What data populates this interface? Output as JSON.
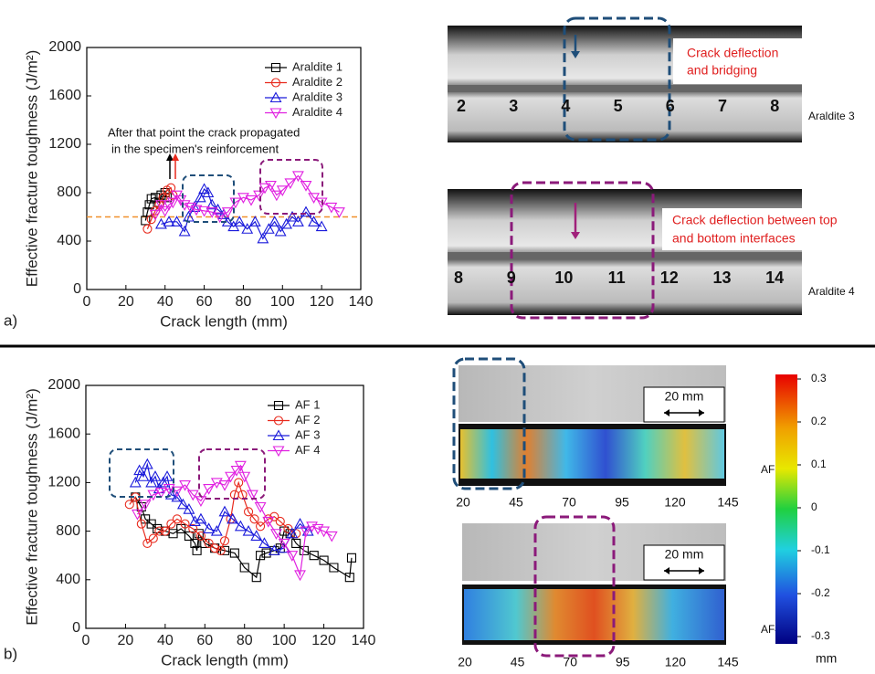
{
  "chart_data": [
    {
      "type": "line",
      "panel": "a)",
      "xlabel": "Crack length (mm)",
      "ylabel": "Effective fracture toughness (J/m²)",
      "xlim": [
        0,
        140
      ],
      "ylim": [
        0,
        2000
      ],
      "xticks": [
        0,
        20,
        40,
        60,
        80,
        100,
        120,
        140
      ],
      "yticks": [
        0,
        400,
        800,
        1200,
        1600,
        2000
      ],
      "grid": false,
      "legend": "upper right",
      "hline": 600,
      "hline_color": "#f0902a",
      "annotation": [
        "After that point the crack propagated",
        "in the specimen's reinforcement"
      ],
      "series": [
        {
          "name": "Araldite 1",
          "color": "#000000",
          "marker": "square",
          "x": [
            30,
            31,
            32,
            33,
            35,
            37,
            38,
            40,
            41
          ],
          "values": [
            570,
            640,
            700,
            750,
            760,
            720,
            780,
            800,
            760
          ]
        },
        {
          "name": "Araldite 2",
          "color": "#e8291c",
          "marker": "circle",
          "x": [
            31,
            33,
            35,
            37,
            39,
            41,
            43,
            44
          ],
          "values": [
            500,
            580,
            650,
            700,
            760,
            820,
            840,
            780
          ]
        },
        {
          "name": "Araldite 3",
          "color": "#1a1adb",
          "marker": "triangle-up",
          "x": [
            38,
            42,
            46,
            50,
            52,
            55,
            58,
            60,
            62,
            64,
            67,
            70,
            72,
            75,
            78,
            82,
            86,
            90,
            93,
            96,
            99,
            102,
            105,
            108,
            112,
            116,
            120
          ],
          "values": [
            540,
            560,
            560,
            480,
            600,
            680,
            760,
            830,
            800,
            700,
            660,
            620,
            560,
            520,
            560,
            500,
            560,
            420,
            500,
            560,
            480,
            540,
            600,
            560,
            640,
            560,
            520
          ]
        },
        {
          "name": "Araldite 4",
          "color": "#e020e0",
          "marker": "triangle-down",
          "x": [
            35,
            38,
            40,
            42,
            44,
            46,
            48,
            50,
            53,
            56,
            60,
            64,
            68,
            72,
            76,
            80,
            84,
            88,
            91,
            94,
            97,
            100,
            104,
            108,
            112,
            116,
            120,
            125,
            129
          ],
          "values": [
            620,
            700,
            650,
            700,
            720,
            780,
            740,
            700,
            680,
            660,
            650,
            640,
            600,
            640,
            720,
            760,
            740,
            780,
            840,
            860,
            780,
            820,
            880,
            940,
            860,
            760,
            720,
            680,
            640
          ]
        }
      ]
    },
    {
      "type": "line",
      "panel": "b)",
      "xlabel": "Crack length (mm)",
      "ylabel": "Effective fracture toughness (J/m²)",
      "xlim": [
        0,
        140
      ],
      "ylim": [
        0,
        2000
      ],
      "xticks": [
        0,
        20,
        40,
        60,
        80,
        100,
        120,
        140
      ],
      "yticks": [
        0,
        400,
        800,
        1200,
        1600,
        2000
      ],
      "grid": false,
      "legend": "upper right",
      "series": [
        {
          "name": "AF 1",
          "color": "#000000",
          "marker": "square",
          "x": [
            25,
            28,
            30,
            33,
            36,
            40,
            44,
            48,
            52,
            55,
            56,
            57,
            60,
            65,
            70,
            75,
            80,
            86,
            88,
            91,
            95,
            98,
            100,
            103,
            106,
            110,
            115,
            120,
            125,
            133,
            134
          ],
          "values": [
            1080,
            1000,
            900,
            860,
            820,
            800,
            780,
            820,
            760,
            700,
            640,
            780,
            700,
            660,
            640,
            620,
            500,
            420,
            600,
            620,
            640,
            660,
            800,
            780,
            700,
            640,
            600,
            560,
            500,
            420,
            580
          ]
        },
        {
          "name": "AF 2",
          "color": "#e8291c",
          "marker": "circle",
          "x": [
            22,
            25,
            28,
            31,
            34,
            37,
            40,
            43,
            46,
            50,
            54,
            58,
            62,
            65,
            68,
            70,
            73,
            75,
            77,
            79,
            82,
            85,
            88,
            92,
            95,
            98,
            102,
            106
          ],
          "values": [
            1020,
            1080,
            860,
            700,
            740,
            800,
            800,
            860,
            900,
            860,
            820,
            760,
            700,
            660,
            640,
            720,
            900,
            1100,
            1200,
            1100,
            960,
            900,
            840,
            900,
            920,
            880,
            820,
            780
          ]
        },
        {
          "name": "AF 3",
          "color": "#1a1adb",
          "marker": "triangle-up",
          "x": [
            25,
            27,
            29,
            31,
            33,
            35,
            37,
            39,
            41,
            43,
            46,
            49,
            52,
            55,
            58,
            62,
            66,
            70,
            74,
            78,
            82,
            86,
            90,
            95,
            100,
            104,
            108,
            112
          ],
          "values": [
            1200,
            1300,
            1250,
            1350,
            1200,
            1250,
            1150,
            1200,
            1250,
            1100,
            1080,
            1020,
            980,
            880,
            900,
            820,
            800,
            960,
            900,
            840,
            800,
            760,
            700,
            640,
            660,
            780,
            860,
            800
          ]
        },
        {
          "name": "AF 4",
          "color": "#e020e0",
          "marker": "triangle-down",
          "x": [
            26,
            30,
            34,
            38,
            42,
            46,
            50,
            54,
            58,
            62,
            66,
            70,
            73,
            76,
            78,
            80,
            84,
            88,
            92,
            96,
            100,
            104,
            108,
            111,
            114,
            117,
            120,
            124
          ],
          "values": [
            940,
            1020,
            1100,
            1120,
            1150,
            1130,
            1180,
            1100,
            1050,
            1150,
            1200,
            1180,
            1250,
            1300,
            1340,
            1250,
            1100,
            1000,
            880,
            780,
            700,
            600,
            440,
            800,
            840,
            820,
            800,
            760
          ]
        }
      ]
    }
  ],
  "photos": [
    {
      "label": "Araldite 3",
      "annotation": [
        "Crack deflection",
        "and bridging"
      ],
      "ruler": [
        "2",
        "3",
        "4",
        "5",
        "6",
        "7",
        "8"
      ]
    },
    {
      "label": "Araldite 4",
      "annotation": [
        "Crack deflection between top",
        "and bottom interfaces"
      ],
      "ruler": [
        "8",
        "9",
        "10",
        "11",
        "12",
        "13",
        "14"
      ]
    }
  ],
  "dic": [
    {
      "label": "AF3",
      "scale": "20 mm",
      "axis": [
        "20",
        "45",
        "70",
        "95",
        "120",
        "145"
      ]
    },
    {
      "label": "AF4",
      "scale": "20 mm",
      "axis": [
        "20",
        "45",
        "70",
        "95",
        "120",
        "145"
      ]
    }
  ],
  "colorbar": {
    "clim": [
      -0.3,
      0.3
    ],
    "ticks": [
      0.3,
      0.2,
      0.1,
      0,
      -0.1,
      -0.2,
      -0.3
    ],
    "unit": "mm"
  }
}
